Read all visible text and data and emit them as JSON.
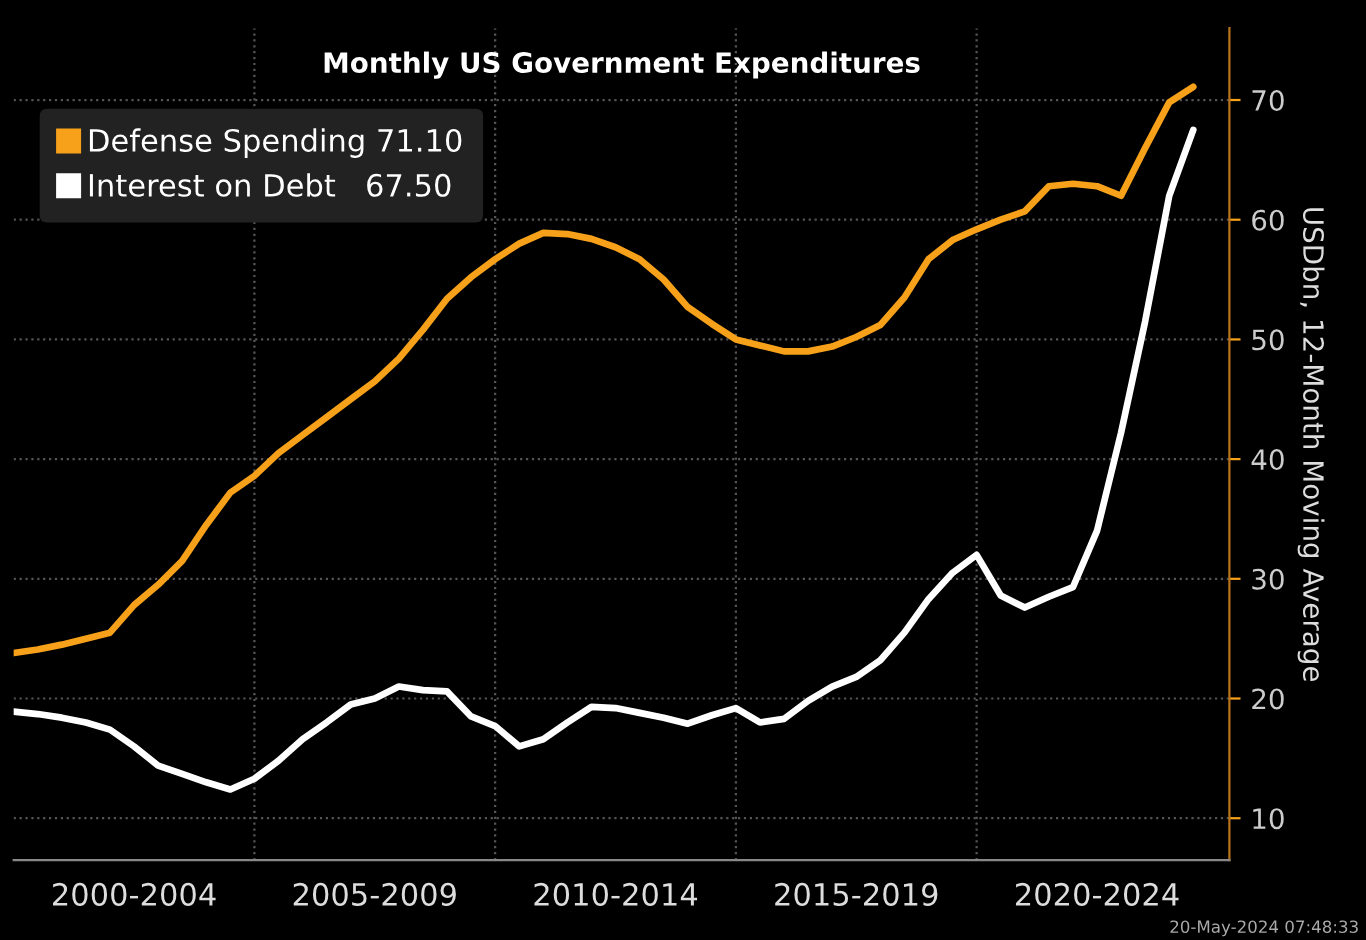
{
  "chart_data": {
    "type": "line",
    "title": "Monthly US Government Expenditures",
    "ylabel": "USDbn, 12-Month Moving Average",
    "categories": [
      null,
      null,
      null,
      null,
      null,
      "2000-2004",
      null,
      null,
      null,
      null,
      null,
      null,
      null,
      null,
      null,
      "2005-2009",
      null,
      null,
      null,
      null,
      null,
      null,
      null,
      null,
      null,
      "2010-2014",
      null,
      null,
      null,
      null,
      null,
      null,
      null,
      null,
      null,
      "2015-2019",
      null,
      null,
      null,
      null,
      null,
      null,
      null,
      null,
      null,
      "2020-2024",
      null,
      null,
      null,
      null
    ],
    "series": [
      {
        "name": "Defense Spending 71.10",
        "color": "#f7a11a",
        "values": [
          23.8,
          24.1,
          24.5,
          25,
          25.5,
          27.8,
          29.5,
          31.5,
          34.5,
          37.2,
          38.6,
          40.5,
          42,
          43.5,
          45,
          46.5,
          48.4,
          50.8,
          53.4,
          55.2,
          56.7,
          58,
          58.9,
          58.8,
          58.4,
          57.7,
          56.7,
          55,
          52.7,
          51.3,
          50,
          49.5,
          49,
          49,
          49.4,
          50.2,
          51.2,
          53.5,
          56.7,
          58.3,
          59.2,
          60,
          60.7,
          62.8,
          63,
          62.8,
          62,
          66,
          69.8,
          71.1
        ]
      },
      {
        "name": "Interest on Debt   67.50",
        "color": "#ffffff",
        "values": [
          18.9,
          18.7,
          18.4,
          18,
          17.4,
          16,
          14.4,
          13.7,
          13,
          12.4,
          13.3,
          14.8,
          16.6,
          18,
          19.5,
          20,
          21,
          20.7,
          20.6,
          18.5,
          17.7,
          16,
          16.6,
          18,
          19.3,
          19.2,
          18.8,
          18.4,
          17.9,
          18.6,
          19.2,
          18,
          18.3,
          19.8,
          21,
          21.8,
          23.2,
          25.5,
          28.3,
          30.5,
          32,
          28.6,
          27.6,
          28.5,
          29.3,
          34,
          42.2,
          51.5,
          62,
          67.5
        ]
      }
    ],
    "ylim": [
      6.5,
      76
    ],
    "yticks": [
      10,
      20,
      30,
      40,
      50,
      60,
      70
    ],
    "grid": true,
    "legend": "top left",
    "annotations": [
      "20-May-2024 07:48:33"
    ]
  }
}
